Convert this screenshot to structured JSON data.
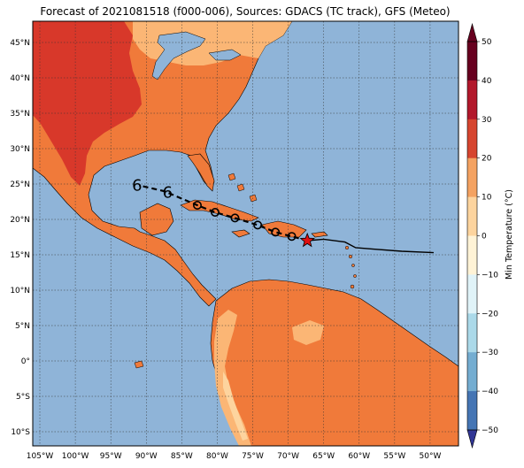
{
  "figure": {
    "title": "Forecast of 2021081518 (f000-006), Sources: GDACS (TC track), GFS (Meteo)"
  },
  "map": {
    "lon_range": [
      -106,
      -46
    ],
    "lat_range": [
      -12,
      48
    ],
    "lon_ticks": [
      "105°W",
      "100°W",
      "95°W",
      "90°W",
      "85°W",
      "80°W",
      "75°W",
      "70°W",
      "65°W",
      "60°W",
      "55°W",
      "50°W"
    ],
    "lat_ticks": [
      "45°N",
      "40°N",
      "35°N",
      "30°N",
      "25°N",
      "20°N",
      "15°N",
      "10°N",
      "5°N",
      "0°",
      "5°S",
      "10°S"
    ],
    "ocean_color": "#8fb4d8",
    "grid": "dotted",
    "track": {
      "past_points": [
        [
          -67.3,
          17.0
        ],
        [
          -65,
          17.2
        ],
        [
          -62,
          16.8
        ],
        [
          -60.5,
          16.0
        ],
        [
          -58,
          15.8
        ],
        [
          -54,
          15.5
        ],
        [
          -49.5,
          15.3
        ]
      ],
      "forecast_points": [
        [
          -67.3,
          17.0
        ],
        [
          -69.5,
          17.6
        ],
        [
          -71.8,
          18.2
        ],
        [
          -74.3,
          19.2
        ],
        [
          -77.5,
          20.2
        ],
        [
          -80.3,
          21.0
        ],
        [
          -82.8,
          22.0
        ],
        [
          -87.5,
          24.0
        ],
        [
          -91,
          24.8
        ]
      ],
      "circle_markers": [
        [
          -69.5,
          17.6
        ],
        [
          -71.8,
          18.2
        ],
        [
          -74.3,
          19.2
        ],
        [
          -77.5,
          20.2
        ],
        [
          -80.3,
          21.0
        ],
        [
          -82.8,
          22.0
        ]
      ],
      "storm_symbols": [
        [
          -87,
          23.8
        ],
        [
          -91.3,
          24.8
        ]
      ],
      "current_position": [
        -67.3,
        17.0
      ],
      "current_marker_color": "#e01010"
    }
  },
  "colorbar": {
    "label": "Min Temperature (°C)",
    "ticks": [
      "50",
      "40",
      "30",
      "20",
      "10",
      "0",
      "−10",
      "−20",
      "−30",
      "−40",
      "−50"
    ],
    "colors": [
      "#67001f",
      "#b2182b",
      "#d6452f",
      "#f4a261",
      "#fdd49e",
      "#fff3d6",
      "#e0f3f8",
      "#abd9e9",
      "#74add1",
      "#4575b4",
      "#313695"
    ]
  }
}
